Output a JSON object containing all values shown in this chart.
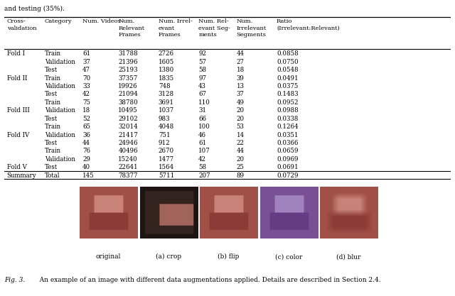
{
  "text_top": "and testing (35%).",
  "table_headers": [
    "Cross-\nvalidation",
    "Category",
    "Num. Videos",
    "Num.\nRelevant\nFrames",
    "Num. Irrel-\nevant\nFrames",
    "Num. Rel-\nevant Seg-\nments",
    "Num.\nIrrelevant\nSegments",
    "Ratio\n(Irrelevant:Relevant)"
  ],
  "rows": [
    [
      "Fold I",
      "Train",
      "61",
      "31788",
      "2726",
      "92",
      "44",
      "0.0858"
    ],
    [
      "",
      "Validation",
      "37",
      "21396",
      "1605",
      "57",
      "27",
      "0.0750"
    ],
    [
      "",
      "Test",
      "47",
      "25193",
      "1380",
      "58",
      "18",
      "0.0548"
    ],
    [
      "Fold II",
      "Train",
      "70",
      "37357",
      "1835",
      "97",
      "39",
      "0.0491"
    ],
    [
      "",
      "Validation",
      "33",
      "19926",
      "748",
      "43",
      "13",
      "0.0375"
    ],
    [
      "",
      "Test",
      "42",
      "21094",
      "3128",
      "67",
      "37",
      "0.1483"
    ],
    [
      "",
      "Train",
      "75",
      "38780",
      "3691",
      "110",
      "49",
      "0.0952"
    ],
    [
      "Fold III",
      "Validation",
      "18",
      "10495",
      "1037",
      "31",
      "20",
      "0.0988"
    ],
    [
      "",
      "Test",
      "52",
      "29102",
      "983",
      "66",
      "20",
      "0.0338"
    ],
    [
      "",
      "Train",
      "65",
      "32014",
      "4048",
      "100",
      "53",
      "0.1264"
    ],
    [
      "Fold IV",
      "Validation",
      "36",
      "21417",
      "751",
      "46",
      "14",
      "0.0351"
    ],
    [
      "",
      "Test",
      "44",
      "24946",
      "912",
      "61",
      "22",
      "0.0366"
    ],
    [
      "",
      "Train",
      "76",
      "40496",
      "2670",
      "107",
      "44",
      "0.0659"
    ],
    [
      "",
      "Validation",
      "29",
      "15240",
      "1477",
      "42",
      "20",
      "0.0969"
    ],
    [
      "Fold V",
      "Test",
      "40",
      "22641",
      "1564",
      "58",
      "25",
      "0.0691"
    ],
    [
      "Summary",
      "Total",
      "145",
      "78377",
      "5711",
      "207",
      "89",
      "0.0729"
    ]
  ],
  "caption_prefix": "Fig. 3.",
  "caption_body": "   An example of an image with different data augmentations applied. Details are described in Section 2.4.",
  "image_labels": [
    "original",
    "(a) crop",
    "(b) flip",
    "(c) color",
    "(d) blur"
  ],
  "col_starts": [
    0.005,
    0.09,
    0.175,
    0.255,
    0.345,
    0.435,
    0.52,
    0.61
  ],
  "header_fontsize": 6.0,
  "cell_fontsize": 6.2,
  "background_color": "#ffffff"
}
